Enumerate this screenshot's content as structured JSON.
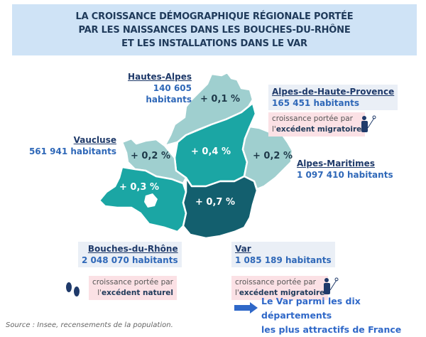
{
  "title": {
    "lines": [
      "LA CROISSANCE DÉMOGRAPHIQUE RÉGIONALE PORTÉE",
      "PAR LES NAISSANCES DANS LES BOUCHES-DU-RHÔNE",
      "ET LES INSTALLATIONS DANS LE VAR"
    ]
  },
  "colors": {
    "light": "#9fcfcf",
    "mid": "#1ba6a4",
    "dark": "#135f6e",
    "name": "#1f3a6a",
    "population": "#2f68b8",
    "pink_box": "#fbe1e5"
  },
  "departments": {
    "hautes_alpes": {
      "name": "Hautes-Alpes",
      "population": "140 605 habitants",
      "growth": "+ 0,1 %"
    },
    "alpes_haute_provence": {
      "name": "Alpes-de-Haute-Provence",
      "population": "165 451 habitants",
      "growth": "+ 0,4 %",
      "driver_line1": "croissance portée par",
      "driver_prefix": "l'",
      "driver_bold": "excédent migratoire",
      "icon": "traveler-icon"
    },
    "vaucluse": {
      "name": "Vaucluse",
      "population": "561 941 habitants",
      "growth": "+ 0,2 %"
    },
    "alpes_maritimes": {
      "name": "Alpes-Maritimes",
      "population": "1 097 410 habitants",
      "growth": "+ 0,2 %"
    },
    "bouches_du_rhone": {
      "name": "Bouches-du-Rhône",
      "population": "2 048 070 habitants",
      "growth": "+ 0,3 %",
      "driver_line1": "croissance portée par",
      "driver_prefix": "l'",
      "driver_bold": "excédent naturel",
      "icon": "footprints-icon"
    },
    "var": {
      "name": "Var",
      "population": "1 085 189 habitants",
      "growth": "+ 0,7 %",
      "driver_line1": "croissance portée par",
      "driver_prefix": "l'",
      "driver_bold": "excédent migratoire",
      "icon": "traveler-icon"
    }
  },
  "note": {
    "line1": "Le Var parmi les dix départements",
    "line2": "les plus attractifs de France",
    "icon": "arrow-right-icon"
  },
  "source": "Source : Insee, recensements de la population."
}
